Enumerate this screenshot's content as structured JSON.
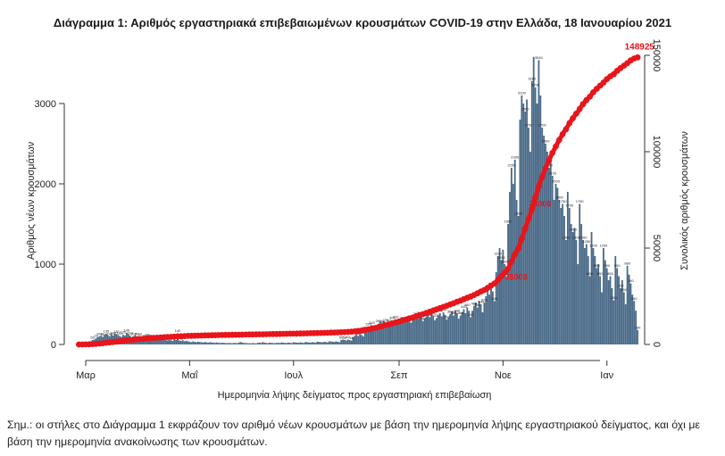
{
  "chart_data": {
    "type": "bar",
    "title": "Διάγραμμα 1: Αριθμός εργαστηριακά επιβεβαιωμένων κρουσμάτων COVID-19 στην Ελλάδα, 18 Ιανουαρίου 2021",
    "xlabel": "Ημερομηνία λήψης δείγματος προς εργαστηριακή επιβεβαίωση",
    "ylabel": "Αριθμός νέων κρουσμάτων",
    "y2label": "Συνολικός αριθμός κρουσμάτων",
    "x_tick_labels": [
      "Μαρ",
      "Μαΐ",
      "Ιουλ",
      "Σεπ",
      "Νοε",
      "Ιαν"
    ],
    "y_ticks": [
      "0",
      "1000",
      "2000",
      "3000"
    ],
    "y2_ticks": [
      "0",
      "50000",
      "100000",
      "150000"
    ],
    "ylim": [
      0,
      3700
    ],
    "y2lim": [
      0,
      155000
    ],
    "bar_color": "#4a6a88",
    "line_color": "#e8151b",
    "grid": false,
    "bars_weekly": [
      {
        "week": "2020-02-26",
        "values": [
          2,
          5,
          8,
          12,
          20,
          25,
          30
        ]
      },
      {
        "week": "2020-03-04",
        "values": [
          40,
          55,
          60,
          75,
          90,
          100,
          110
        ]
      },
      {
        "week": "2020-03-11",
        "values": [
          95,
          120,
          135,
          115,
          100,
          125,
          110
        ]
      },
      {
        "week": "2020-03-18",
        "values": [
          140,
          130,
          118,
          105,
          95,
          120,
          110
        ]
      },
      {
        "week": "2020-03-25",
        "values": [
          145,
          128,
          110,
          90,
          102,
          115,
          98
        ]
      },
      {
        "week": "2020-04-01",
        "values": [
          105,
          92,
          80,
          75,
          95,
          88,
          70
        ]
      },
      {
        "week": "2020-04-08",
        "values": [
          80,
          72,
          65,
          60,
          70,
          66,
          55
        ]
      },
      {
        "week": "2020-04-15",
        "values": [
          70,
          62,
          55,
          48,
          58,
          52,
          45
        ]
      },
      {
        "week": "2020-04-22",
        "values": [
          60,
          55,
          140,
          50,
          45,
          52,
          40
        ]
      },
      {
        "week": "2020-04-29",
        "values": [
          45,
          40,
          35,
          30,
          38,
          33,
          28
        ]
      },
      {
        "week": "2020-05-06",
        "values": [
          35,
          30,
          28,
          25,
          30,
          26,
          22
        ]
      },
      {
        "week": "2020-05-13",
        "values": [
          28,
          25,
          22,
          20,
          24,
          21,
          18
        ]
      },
      {
        "week": "2020-05-20",
        "values": [
          22,
          20,
          18,
          16,
          19,
          17,
          15
        ]
      },
      {
        "week": "2020-05-27",
        "values": [
          20,
          18,
          16,
          25,
          30,
          22,
          18
        ]
      },
      {
        "week": "2020-06-03",
        "values": [
          18,
          16,
          15,
          14,
          17,
          15,
          13
        ]
      },
      {
        "week": "2020-06-10",
        "values": [
          20,
          25,
          18,
          30,
          22,
          19,
          16
        ]
      },
      {
        "week": "2020-06-17",
        "values": [
          22,
          20,
          18,
          16,
          19,
          21,
          17
        ]
      },
      {
        "week": "2020-06-24",
        "values": [
          25,
          22,
          20,
          18,
          23,
          20,
          17
        ]
      },
      {
        "week": "2020-07-01",
        "values": [
          28,
          25,
          22,
          20,
          26,
          23,
          19
        ]
      },
      {
        "week": "2020-07-08",
        "values": [
          30,
          28,
          25,
          22,
          29,
          26,
          21
        ]
      },
      {
        "week": "2020-07-15",
        "values": [
          35,
          32,
          30,
          27,
          33,
          30,
          25
        ]
      },
      {
        "week": "2020-07-22",
        "values": [
          40,
          37,
          34,
          30,
          38,
          34,
          29
        ]
      },
      {
        "week": "2020-07-29",
        "values": [
          55,
          60,
          58,
          50,
          62,
          55,
          48
        ]
      },
      {
        "week": "2020-08-05",
        "values": [
          90,
          110,
          125,
          105,
          130,
          118,
          100
        ]
      },
      {
        "week": "2020-08-12",
        "values": [
          180,
          200,
          220,
          190,
          240,
          210,
          170
        ]
      },
      {
        "week": "2020-08-19",
        "values": [
          240,
          260,
          280,
          250,
          290,
          270,
          230
        ]
      },
      {
        "week": "2020-08-26",
        "values": [
          260,
          280,
          300,
          270,
          310,
          290,
          250
        ]
      },
      {
        "week": "2020-09-02",
        "values": [
          280,
          300,
          320,
          290,
          330,
          310,
          270
        ]
      },
      {
        "week": "2020-09-09",
        "values": [
          300,
          330,
          350,
          320,
          360,
          340,
          290
        ]
      },
      {
        "week": "2020-09-16",
        "values": [
          320,
          350,
          370,
          340,
          380,
          360,
          300
        ]
      },
      {
        "week": "2020-09-23",
        "values": [
          330,
          360,
          390,
          350,
          400,
          370,
          310
        ]
      },
      {
        "week": "2020-09-30",
        "values": [
          340,
          380,
          410,
          360,
          420,
          390,
          320
        ]
      },
      {
        "week": "2020-10-07",
        "values": [
          360,
          400,
          440,
          390,
          460,
          420,
          340
        ]
      },
      {
        "week": "2020-10-14",
        "values": [
          420,
          480,
          520,
          460,
          540,
          500,
          400
        ]
      },
      {
        "week": "2020-10-21",
        "values": [
          520,
          600,
          680,
          620,
          720,
          660,
          540
        ]
      },
      {
        "week": "2020-10-28",
        "values": [
          900,
          1100,
          1200,
          1050,
          1180,
          1000,
          850
        ]
      },
      {
        "week": "2020-11-04",
        "values": [
          1500,
          1900,
          2200,
          2000,
          2300,
          1800,
          1600
        ]
      },
      {
        "week": "2020-11-11",
        "values": [
          2800,
          3100,
          3000,
          2900,
          3050,
          2700,
          2400
        ]
      },
      {
        "week": "2020-11-18",
        "values": [
          3280,
          3580,
          3200,
          3000,
          3540,
          3100,
          2700
        ]
      },
      {
        "week": "2020-11-25",
        "values": [
          2600,
          2500,
          2400,
          2200,
          2300,
          2100,
          1800
        ]
      },
      {
        "week": "2020-12-02",
        "values": [
          2000,
          1950,
          1800,
          1700,
          1750,
          1600,
          1300
        ]
      },
      {
        "week": "2020-12-09",
        "values": [
          1900,
          1700,
          1500,
          1400,
          1450,
          1300,
          1000
        ]
      },
      {
        "week": "2020-12-16",
        "values": [
          1750,
          1500,
          1300,
          1200,
          1250,
          1100,
          850
        ]
      },
      {
        "week": "2020-12-23",
        "values": [
          1400,
          1200,
          1100,
          950,
          1000,
          850,
          650
        ]
      },
      {
        "week": "2020-12-30",
        "values": [
          1200,
          1050,
          950,
          800,
          850,
          700,
          550
        ]
      },
      {
        "week": "2021-01-06",
        "values": [
          1100,
          950,
          850,
          700,
          800,
          650,
          500
        ]
      },
      {
        "week": "2021-01-13",
        "values": [
          980,
          870,
          760,
          620,
          540,
          420,
          180
        ]
      }
    ],
    "cumulative_annotations": [
      {
        "date": "2020-10-31",
        "value": 35000,
        "label": "35000"
      },
      {
        "date": "2020-11-14",
        "value": 73000,
        "label": "73000"
      },
      {
        "date": "2021-01-17",
        "value": 148925,
        "label": "148925"
      }
    ]
  },
  "note": "Σημ.: οι στήλες στο Διάγραμμα 1 εκφράζουν τον αριθμό νέων κρουσμάτων με βάση την ημερομηνία λήψης εργαστηριακού δείγματος, και όχι με βάση την ημερομηνία ανακοίνωσης των κρουσμάτων."
}
